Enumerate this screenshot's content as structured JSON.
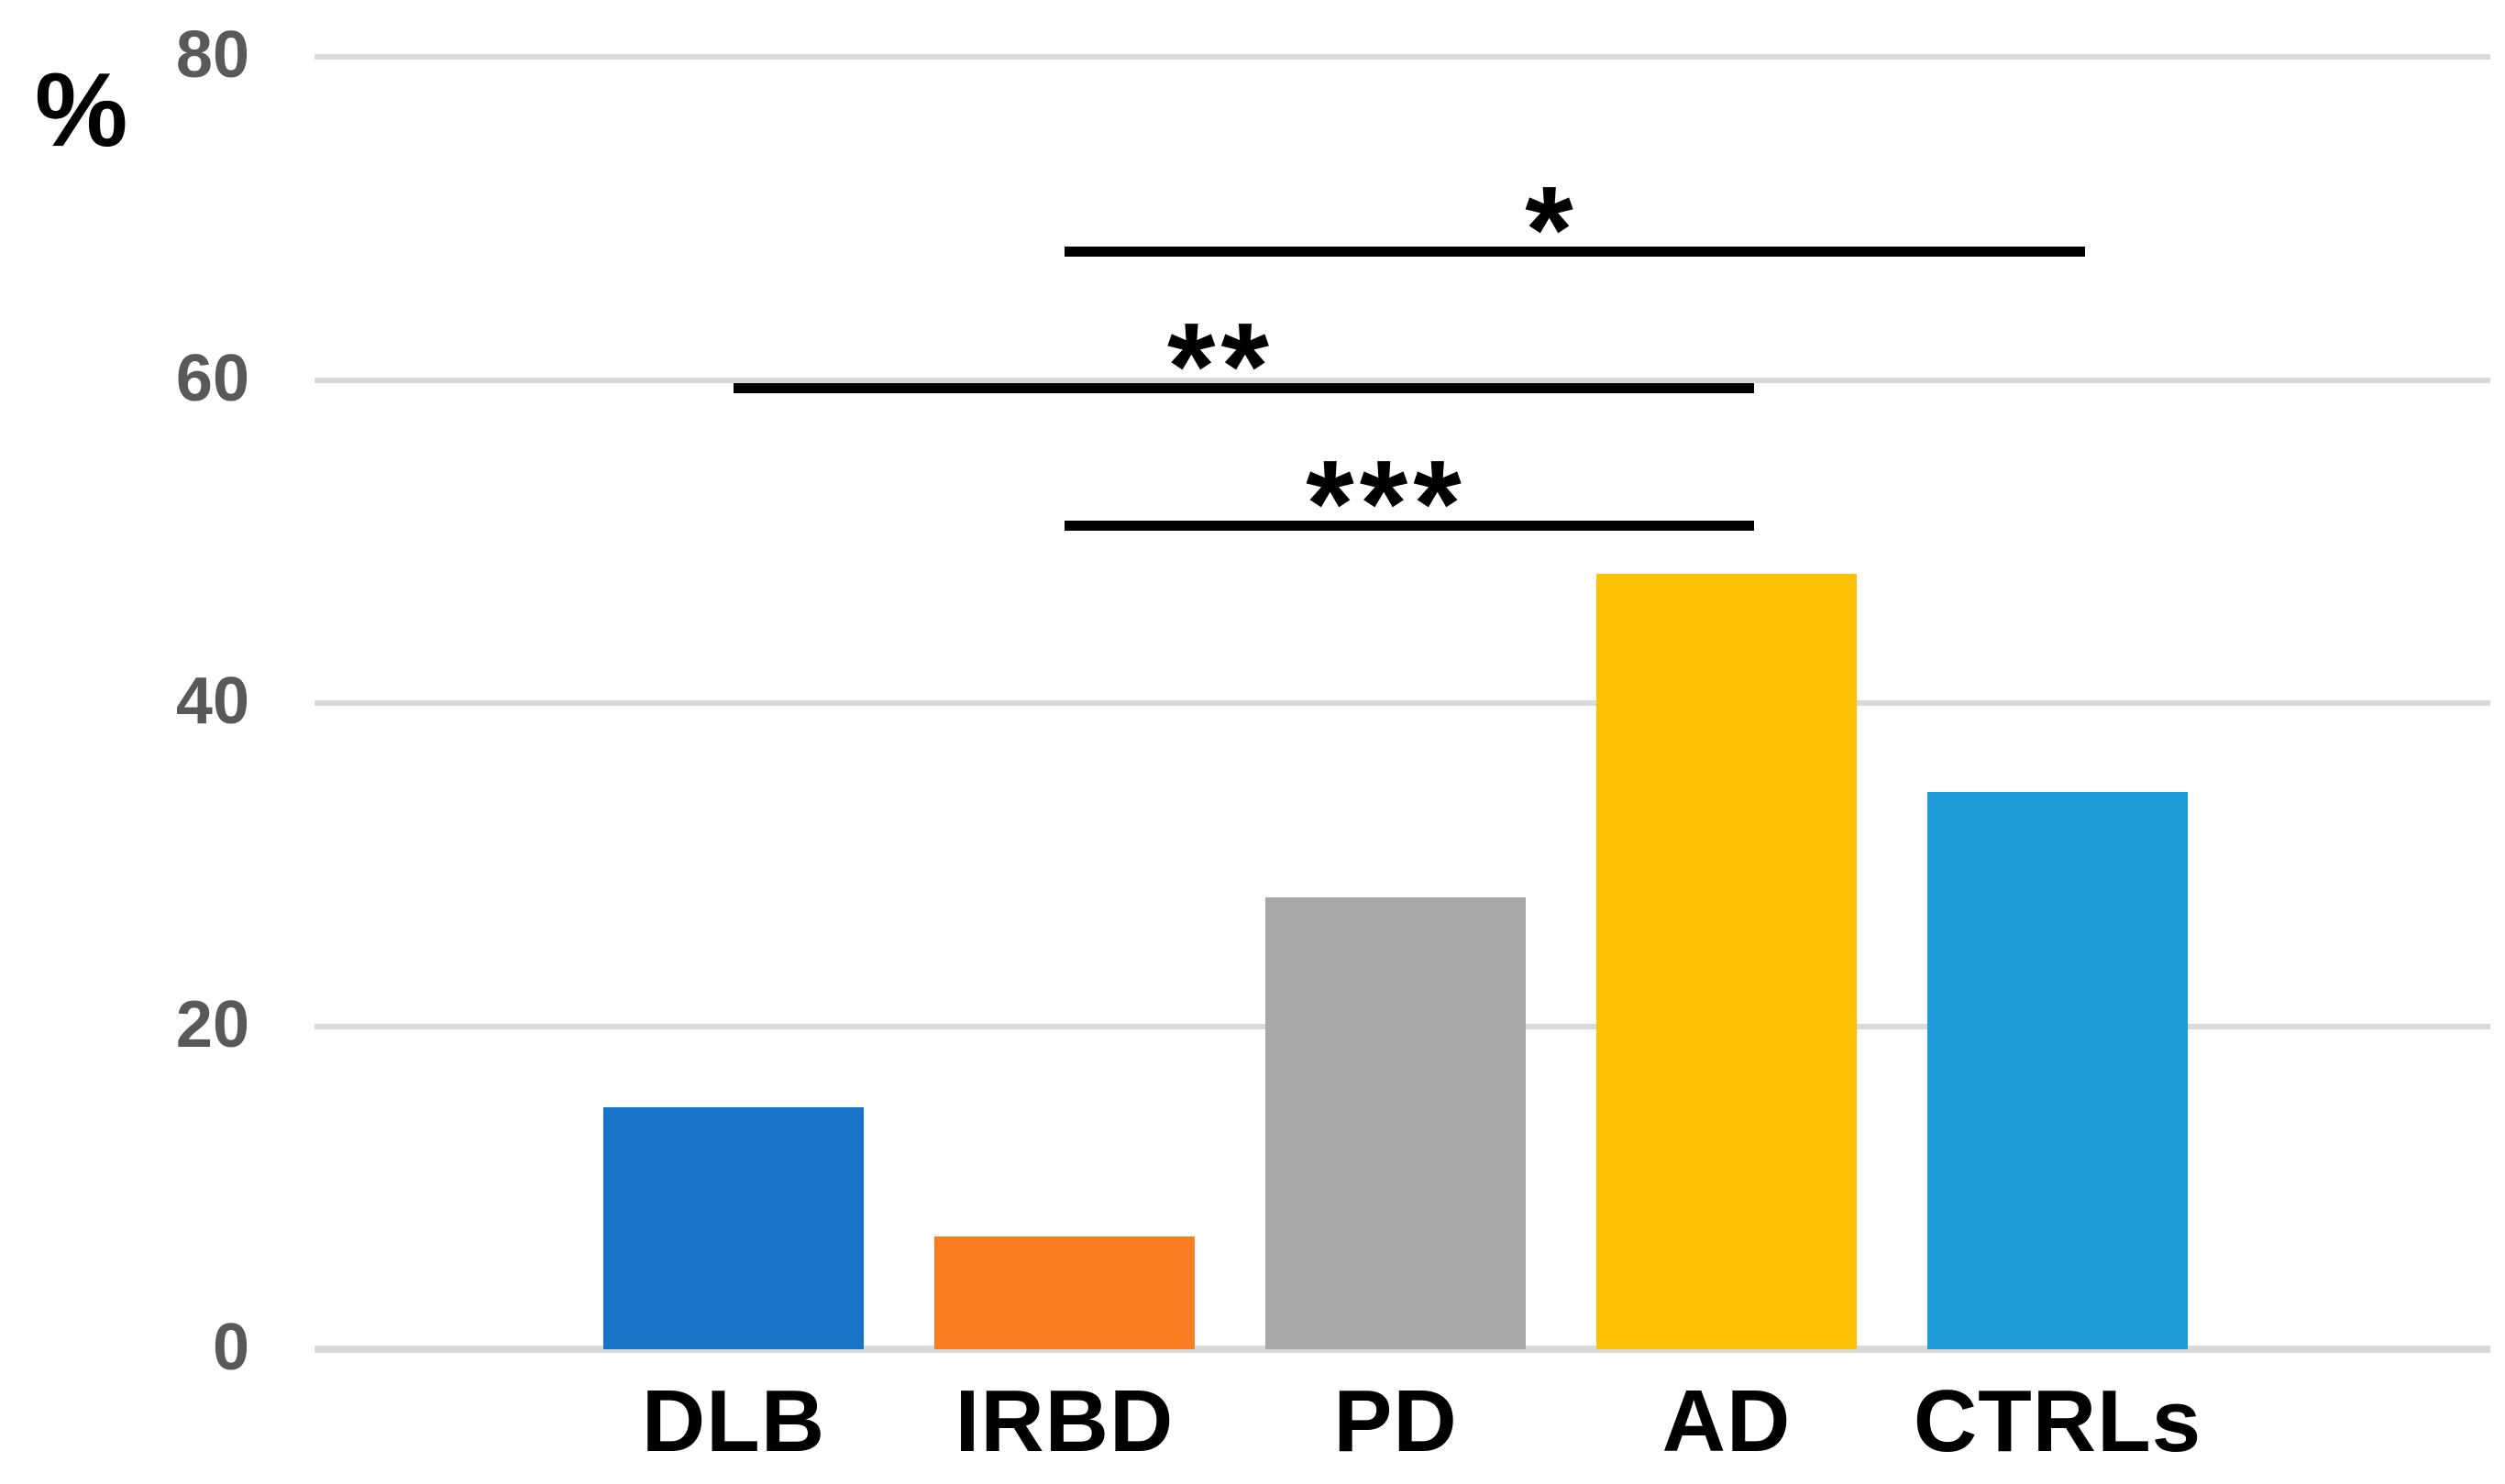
{
  "figure": {
    "background": "#FFFFFF"
  },
  "chart_data": {
    "type": "bar",
    "title": "",
    "ylabel": "%",
    "xlabel": "",
    "categories": [
      "DLB",
      "IRBD",
      "PD",
      "AD",
      "CTRLs"
    ],
    "values": [
      15,
      7,
      28,
      48,
      34.5
    ],
    "bar_colors": [
      "#1774C8",
      "#FA7D22",
      "#A8A8A8",
      "#FFC103",
      "#1C9CD8"
    ],
    "yticks": [
      80,
      60,
      40,
      20,
      0
    ],
    "ylim": [
      0,
      80
    ],
    "grid": true,
    "legend": "none",
    "gridline_color": "#D9D9D9",
    "tick_label_color": "#595959",
    "category_label_color": "#000000",
    "significance_line_color": "#000000",
    "annotations": [
      {
        "label": "*",
        "from": "IRBD",
        "to": "CTRLs",
        "y_value": 68
      },
      {
        "label": "**",
        "from": "DLB",
        "to": "AD",
        "y_value": 59.5
      },
      {
        "label": "***",
        "from": "IRBD",
        "to": "AD",
        "y_value": 51
      }
    ]
  }
}
